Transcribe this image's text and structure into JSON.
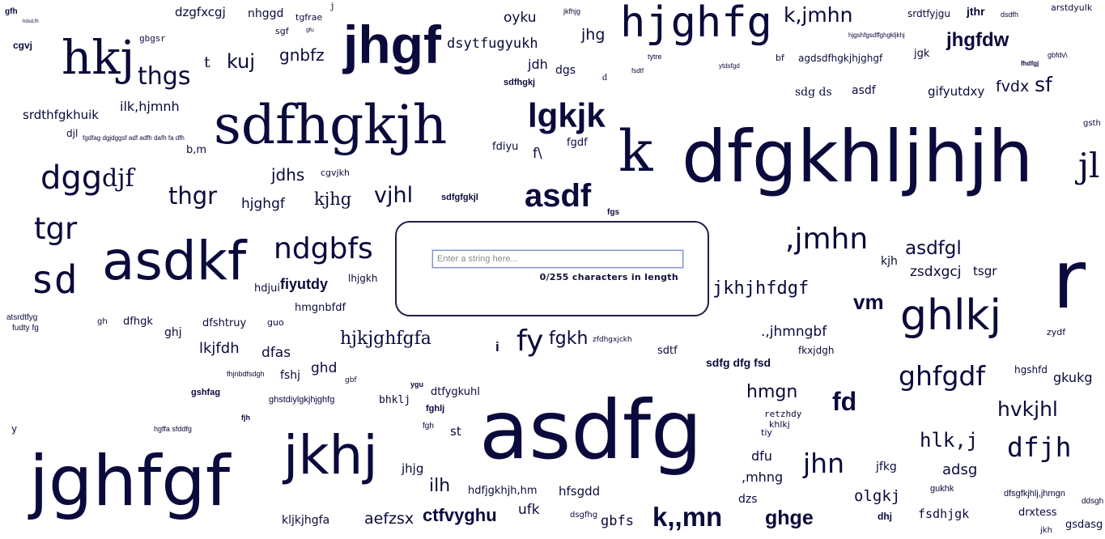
{
  "input": {
    "placeholder": "Enter a string here...",
    "count_text": "0/255 characters in length"
  },
  "words": [
    "gfh",
    "hdsd,fh",
    "dzgfxcgj",
    "nhggd",
    "tgfrae",
    "j",
    "oyku",
    "jkfhjg",
    "hjghfg",
    "k,jmhn",
    "srdtfyjgu",
    "jthr",
    "dsdfh",
    "arstdyulk",
    "cgvj",
    "hkj",
    "gbgsr",
    "sgf",
    "gfu",
    "jhgf",
    "dsytfugyukh",
    "jhg",
    "hjgshfgsdffghgkljkhj",
    "jhgfdw",
    "thgs",
    "t",
    "kuj",
    "gnbfz",
    "jdh",
    "dgs",
    "agdsdfhgkjhjghgf",
    "jgk",
    "fhdfgj",
    "gbfdv\\",
    "sdfhgkj",
    "d",
    "tytre",
    "bf",
    "fsdtf",
    "ytdsfgd",
    "srdthfgkhuik",
    "ilk,hjmnh",
    "sdfhgkjh",
    "lgkjk",
    "sdg ds",
    "asdf",
    "gifyutdxy",
    "fvdx",
    "sf",
    "gsth",
    "djl",
    "fgdfag dgjdggsf adf adfh dafh fa dfh",
    "b,m",
    "fdiyu",
    "f\\",
    "fgdf",
    "k",
    "dfgkhljhjh",
    "jl",
    "dgg",
    "djf",
    "jdhs",
    "cgvjkh",
    "thgr",
    "hjghgf",
    "kjhg",
    "vjhl",
    "sdfgfgkjl",
    "asdf",
    "fgs",
    "tgr",
    ",jmhn",
    "asdfgl",
    "kjh",
    "zsdxgcj",
    "tsgr",
    "r",
    "asdkf",
    "ndgbfs",
    "sd",
    "fiyutdy",
    "hdjui",
    "lhjgkh",
    "jkhjhfdgf",
    "vm",
    "hmgnbfdf",
    "ghlkj",
    "dfhgk",
    "gh",
    "ghj",
    "dfshtruy",
    "guo",
    ".,jhmngbf",
    "zydf",
    "lkjfdh",
    "dfas",
    "hjkjghfgfa",
    "fy",
    "fgkh",
    "zfdhgxjckh",
    "i",
    "sdtf",
    "fkxjdgh",
    "hgshfd",
    "gkukg",
    "ghfgdf",
    "ghd",
    "fshj",
    "fhjnbdfsdgh",
    "gbf",
    "sdfg dfg fsd",
    "ghstdiylgkjhjghfg",
    "dtfygkuhl",
    "bhklj",
    "ygu",
    "gshfag",
    "hmgn",
    "fd",
    "retzhdy",
    "khlkj",
    "hvkjhl",
    "fjh",
    "fghlj",
    "st",
    "fgh",
    "y",
    "hgffa sfddfg",
    "asdfg",
    "hlk,j",
    "dfjh",
    "jghfgf",
    "jkhj",
    "jhjg",
    "ilh",
    "hdfjgkhjh,hm",
    "hfsgdd",
    "dfu",
    "jhn",
    "jfkg",
    "adsg",
    ",mhng",
    "dzs",
    "olgkj",
    "gukhk",
    "dfsgfkjhlj,jhmgn",
    "ddsgh",
    "kljkjhgfa",
    "aefzsx",
    "ctfvyghu",
    "ufk",
    "dsgfhg",
    "gbfs",
    "k,,mn",
    "ghge",
    "dhj",
    "fsdhjgk",
    "drxtess",
    "jkh",
    "gsdasg",
    "atsrdtfyg",
    "fudty fg",
    "tiy"
  ]
}
